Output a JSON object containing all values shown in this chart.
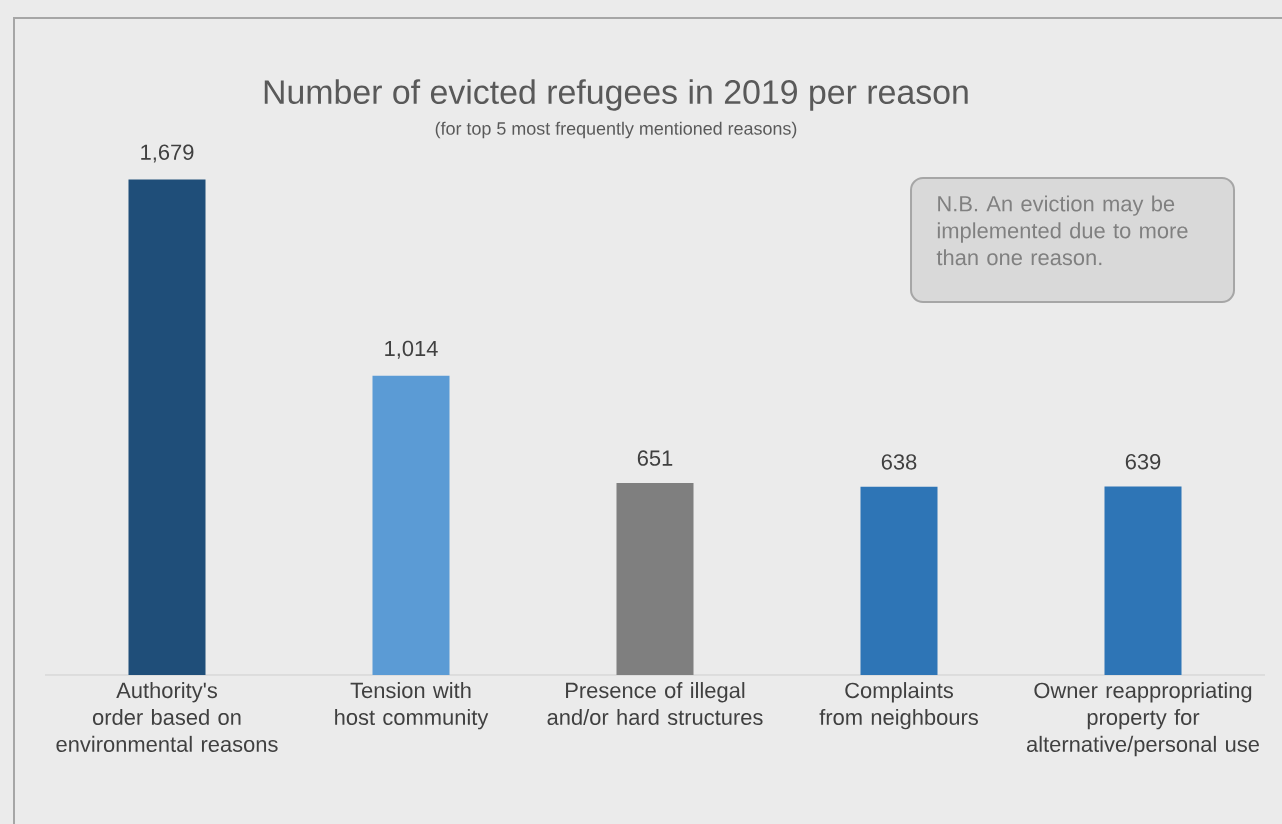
{
  "chart_data": {
    "type": "bar",
    "title": "Number of evicted refugees in 2019 per reason",
    "subtitle": "(for top 5 most frequently mentioned reasons)",
    "categories": [
      "Authority's order based on environmental reasons",
      "Tension with host community",
      "Presence of illegal and/or hard structures",
      "Complaints from neighbours",
      "Owner reappropriating property for alternative/personal use"
    ],
    "values": [
      1679,
      1014,
      651,
      638,
      639
    ],
    "colors": [
      "#1f4e79",
      "#5b9bd5",
      "#7f7f7f",
      "#2e75b6",
      "#2e75b6"
    ],
    "value_labels": [
      "1,679",
      "1,014",
      "651",
      "638",
      "639"
    ],
    "annotations": [
      "N.B. An eviction may be implemented due to more than one reason."
    ]
  }
}
